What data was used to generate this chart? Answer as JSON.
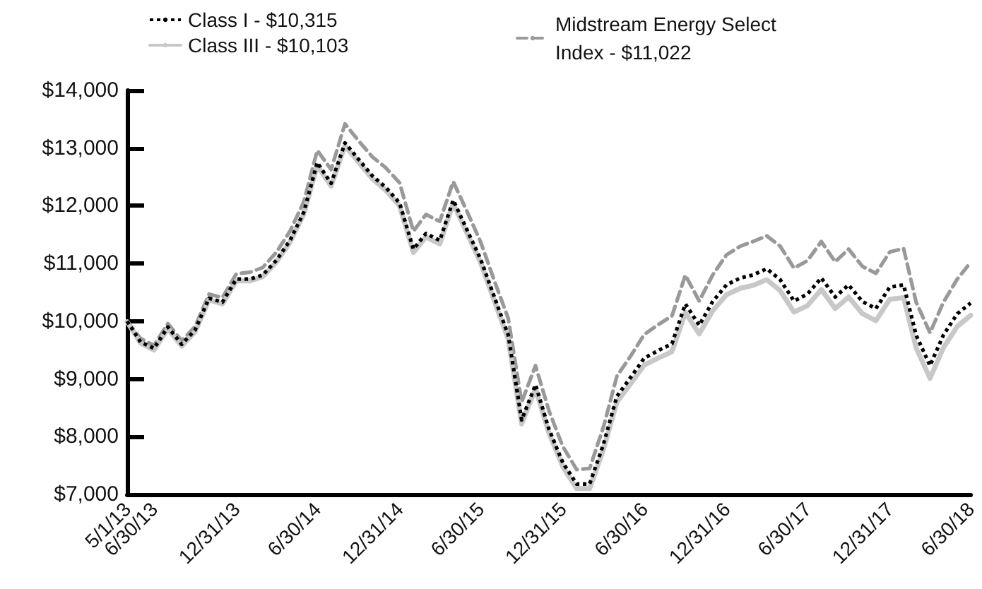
{
  "chart_data": {
    "type": "line",
    "x": [
      "2013-05-01",
      "2013-05-31",
      "2013-06-30",
      "2013-07-31",
      "2013-08-31",
      "2013-09-30",
      "2013-10-31",
      "2013-11-30",
      "2013-12-31",
      "2014-01-31",
      "2014-02-28",
      "2014-03-31",
      "2014-04-30",
      "2014-05-31",
      "2014-06-30",
      "2014-07-31",
      "2014-08-31",
      "2014-09-30",
      "2014-10-31",
      "2014-11-30",
      "2014-12-31",
      "2015-01-31",
      "2015-02-28",
      "2015-03-31",
      "2015-04-30",
      "2015-05-31",
      "2015-06-30",
      "2015-07-31",
      "2015-08-31",
      "2015-09-30",
      "2015-10-31",
      "2015-11-30",
      "2015-12-31",
      "2016-01-31",
      "2016-02-29",
      "2016-03-31",
      "2016-04-30",
      "2016-05-31",
      "2016-06-30",
      "2016-07-31",
      "2016-08-31",
      "2016-09-30",
      "2016-10-31",
      "2016-11-30",
      "2016-12-31",
      "2017-01-31",
      "2017-02-28",
      "2017-03-31",
      "2017-04-30",
      "2017-05-31",
      "2017-06-30",
      "2017-07-31",
      "2017-08-31",
      "2017-09-30",
      "2017-10-31",
      "2017-11-30",
      "2017-12-31",
      "2018-01-31",
      "2018-02-28",
      "2018-03-31",
      "2018-04-30",
      "2018-05-31",
      "2018-06-30"
    ],
    "series": [
      {
        "name": "Class I - $10,315",
        "color": "#000000",
        "line_style": "dotted",
        "values": [
          10000,
          9640,
          9530,
          9900,
          9600,
          9850,
          10400,
          10330,
          10730,
          10730,
          10800,
          11060,
          11400,
          11890,
          12750,
          12390,
          13090,
          12810,
          12520,
          12320,
          12050,
          11250,
          11520,
          11400,
          12100,
          11580,
          11080,
          10420,
          9760,
          8290,
          8900,
          8130,
          7550,
          7180,
          7180,
          7870,
          8700,
          9030,
          9360,
          9490,
          9610,
          10300,
          9930,
          10340,
          10630,
          10750,
          10800,
          10910,
          10720,
          10350,
          10470,
          10750,
          10420,
          10630,
          10340,
          10220,
          10590,
          10630,
          9760,
          9230,
          9760,
          10130,
          10315
        ]
      },
      {
        "name": "Class III - $10,103",
        "color": "#c8c8c8",
        "line_style": "solid",
        "values": [
          9990,
          9620,
          9500,
          9870,
          9570,
          9820,
          10370,
          10300,
          10700,
          10700,
          10770,
          11030,
          11370,
          11860,
          12700,
          12340,
          13040,
          12760,
          12470,
          12270,
          12000,
          11190,
          11460,
          11340,
          12040,
          11520,
          11020,
          10350,
          9690,
          8220,
          8830,
          8060,
          7480,
          7100,
          7100,
          7780,
          8600,
          8920,
          9240,
          9360,
          9470,
          10150,
          9780,
          10180,
          10460,
          10570,
          10620,
          10720,
          10530,
          10160,
          10270,
          10550,
          10220,
          10420,
          10130,
          10010,
          10380,
          10410,
          9540,
          9010,
          9540,
          9910,
          10103
        ]
      },
      {
        "name": "Midstream Energy Select Index - $11,022",
        "color": "#999999",
        "line_style": "dashed",
        "values": [
          10000,
          9700,
          9580,
          9960,
          9660,
          9910,
          10470,
          10410,
          10820,
          10850,
          10930,
          11200,
          11560,
          12070,
          12960,
          12630,
          13420,
          13130,
          12850,
          12660,
          12400,
          11560,
          11850,
          11730,
          12420,
          11900,
          11380,
          10700,
          10050,
          8600,
          9230,
          8450,
          7830,
          7430,
          7450,
          8170,
          9050,
          9400,
          9770,
          9940,
          10090,
          10800,
          10350,
          10800,
          11150,
          11300,
          11380,
          11480,
          11300,
          10920,
          11050,
          11380,
          11030,
          11250,
          10950,
          10830,
          11200,
          11260,
          10330,
          9800,
          10330,
          10730,
          11022
        ]
      }
    ],
    "xlim": [
      "2013-05-01",
      "2018-06-30"
    ],
    "xticks": [
      {
        "value": "2013-05-01",
        "label": "5/1/13"
      },
      {
        "value": "2013-06-30",
        "label": "6/30/13"
      },
      {
        "value": "2013-12-31",
        "label": "12/31/13"
      },
      {
        "value": "2014-06-30",
        "label": "6/30/14"
      },
      {
        "value": "2014-12-31",
        "label": "12/31/14"
      },
      {
        "value": "2015-06-30",
        "label": "6/30/15"
      },
      {
        "value": "2015-12-31",
        "label": "12/31/15"
      },
      {
        "value": "2016-06-30",
        "label": "6/30/16"
      },
      {
        "value": "2016-12-31",
        "label": "12/31/16"
      },
      {
        "value": "2017-06-30",
        "label": "6/30/17"
      },
      {
        "value": "2017-12-31",
        "label": "12/31/17"
      },
      {
        "value": "2018-06-30",
        "label": "6/30/18"
      }
    ],
    "ylim": [
      7000,
      14000
    ],
    "yticks": [
      {
        "value": 7000,
        "label": "$7,000"
      },
      {
        "value": 8000,
        "label": "$8,000"
      },
      {
        "value": 9000,
        "label": "$9,000"
      },
      {
        "value": 10000,
        "label": "$10,000"
      },
      {
        "value": 11000,
        "label": "$11,000"
      },
      {
        "value": 12000,
        "label": "$12,000"
      },
      {
        "value": 13000,
        "label": "$13,000"
      },
      {
        "value": 14000,
        "label": "$14,000"
      }
    ],
    "grid": false,
    "legend": "top",
    "marker": "none"
  }
}
